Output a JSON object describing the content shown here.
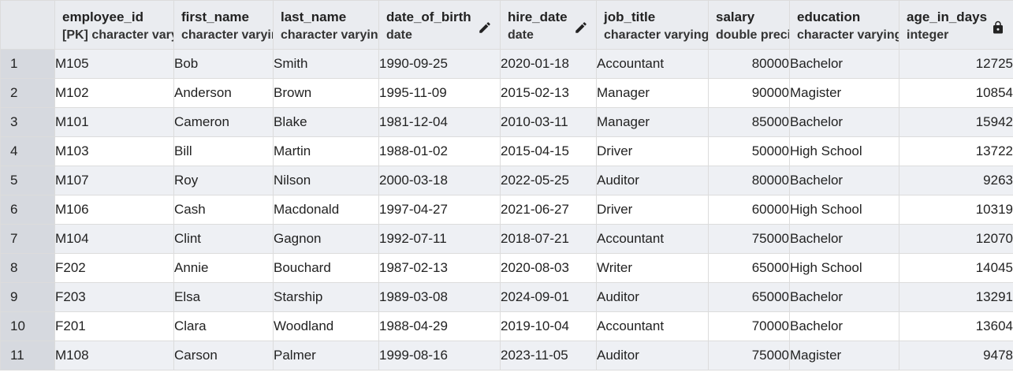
{
  "columns": [
    {
      "name": "employee_id",
      "type": "[PK] character varying",
      "icon": ""
    },
    {
      "name": "first_name",
      "type": "character varying",
      "icon": ""
    },
    {
      "name": "last_name",
      "type": "character varying",
      "icon": ""
    },
    {
      "name": "date_of_birth",
      "type": "date",
      "icon": "pencil-icon"
    },
    {
      "name": "hire_date",
      "type": "date",
      "icon": "pencil-icon"
    },
    {
      "name": "job_title",
      "type": "character varying",
      "icon": ""
    },
    {
      "name": "salary",
      "type": "double precision",
      "icon": ""
    },
    {
      "name": "education",
      "type": "character varying",
      "icon": ""
    },
    {
      "name": "age_in_days",
      "type": "integer",
      "icon": "lock-icon"
    }
  ],
  "rows": [
    {
      "num": "1",
      "cells": [
        "M105",
        "Bob",
        "Smith",
        "1990-09-25",
        "2020-01-18",
        "Accountant",
        "80000",
        "Bachelor",
        "12725"
      ]
    },
    {
      "num": "2",
      "cells": [
        "M102",
        "Anderson",
        "Brown",
        "1995-11-09",
        "2015-02-13",
        "Manager",
        "90000",
        "Magister",
        "10854"
      ]
    },
    {
      "num": "3",
      "cells": [
        "M101",
        "Cameron",
        "Blake",
        "1981-12-04",
        "2010-03-11",
        "Manager",
        "85000",
        "Bachelor",
        "15942"
      ]
    },
    {
      "num": "4",
      "cells": [
        "M103",
        "Bill",
        "Martin",
        "1988-01-02",
        "2015-04-15",
        "Driver",
        "50000",
        "High School",
        "13722"
      ]
    },
    {
      "num": "5",
      "cells": [
        "M107",
        "Roy",
        "Nilson",
        "2000-03-18",
        "2022-05-25",
        "Auditor",
        "80000",
        "Bachelor",
        "9263"
      ]
    },
    {
      "num": "6",
      "cells": [
        "M106",
        "Cash",
        "Macdonald",
        "1997-04-27",
        "2021-06-27",
        "Driver",
        "60000",
        "High School",
        "10319"
      ]
    },
    {
      "num": "7",
      "cells": [
        "M104",
        "Clint",
        "Gagnon",
        "1992-07-11",
        "2018-07-21",
        "Accountant",
        "75000",
        "Bachelor",
        "12070"
      ]
    },
    {
      "num": "8",
      "cells": [
        "F202",
        "Annie",
        "Bouchard",
        "1987-02-13",
        "2020-08-03",
        "Writer",
        "65000",
        "High School",
        "14045"
      ]
    },
    {
      "num": "9",
      "cells": [
        "F203",
        "Elsa",
        "Starship",
        "1989-03-08",
        "2024-09-01",
        "Auditor",
        "65000",
        "Bachelor",
        "13291"
      ]
    },
    {
      "num": "10",
      "cells": [
        "F201",
        "Clara",
        "Woodland",
        "1988-04-29",
        "2019-10-04",
        "Accountant",
        "70000",
        "Bachelor",
        "13604"
      ]
    },
    {
      "num": "11",
      "cells": [
        "M108",
        "Carson",
        "Palmer",
        "1999-08-16",
        "2023-11-05",
        "Auditor",
        "75000",
        "Magister",
        "9478"
      ]
    }
  ]
}
